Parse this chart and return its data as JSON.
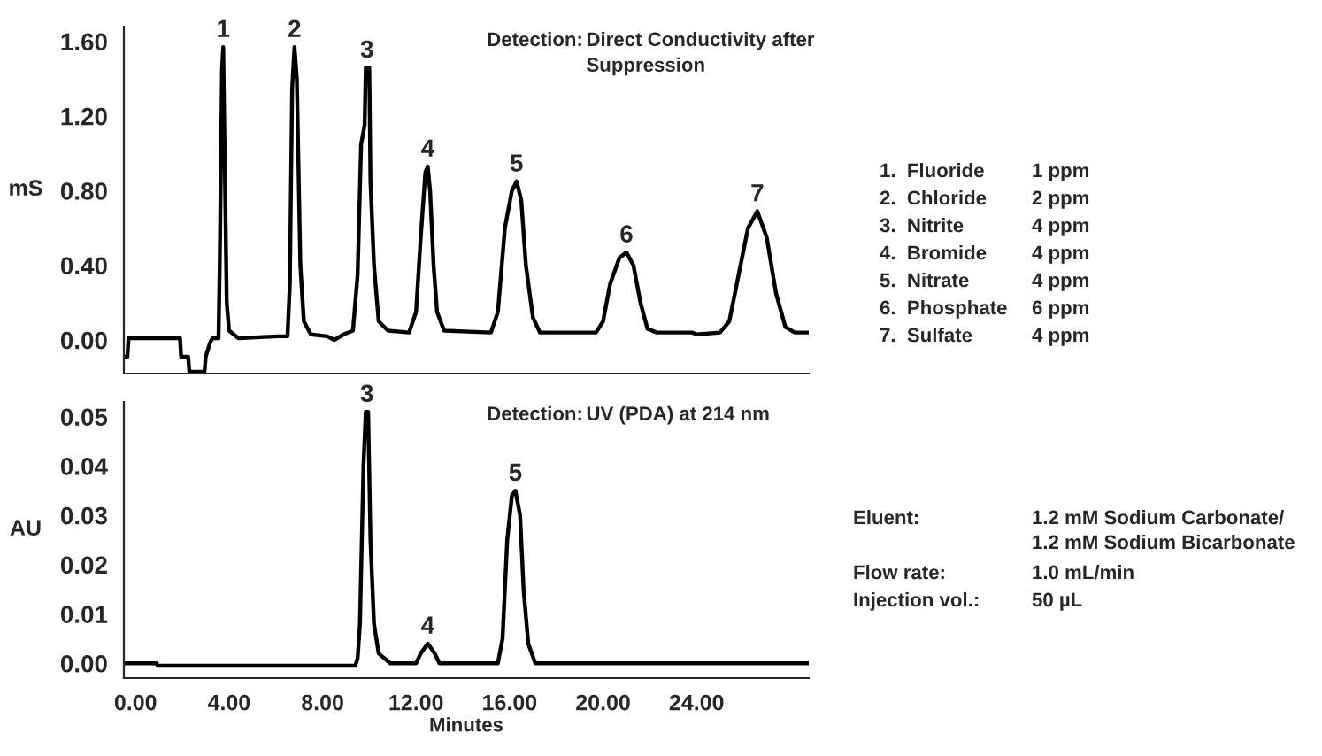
{
  "chart_data": [
    {
      "type": "line",
      "ylabel": "mS",
      "xlim": [
        -0.5,
        28.8
      ],
      "tick_labels": "y",
      "ylim": [
        -0.18,
        1.68
      ],
      "yticks": [
        {
          "value": 0,
          "label": "0.00"
        },
        {
          "value": 0.4,
          "label": "0.40"
        },
        {
          "value": 0.8,
          "label": "0.80"
        },
        {
          "value": 1.2,
          "label": "1.20"
        },
        {
          "value": 1.6,
          "label": "1.60"
        }
      ],
      "grid": false,
      "legend": false,
      "marker": "none",
      "line_style": "solid",
      "series": [
        {
          "color": "#000000",
          "x": [
            -0.5,
            -0.35,
            -0.3,
            1.9,
            1.95,
            2.25,
            2.3,
            2.95,
            3.0,
            3.2,
            3.3,
            3.55,
            3.6,
            3.7,
            3.75,
            3.8,
            3.9,
            4.0,
            4.4,
            6.1,
            6.5,
            6.6,
            6.7,
            6.8,
            6.9,
            7.05,
            7.2,
            7.5,
            8.2,
            8.5,
            8.9,
            9.3,
            9.5,
            9.65,
            9.8,
            9.85,
            10.0,
            10.05,
            10.2,
            10.4,
            10.8,
            11.7,
            12.0,
            12.2,
            12.4,
            12.5,
            12.6,
            12.75,
            12.9,
            13.2,
            15.2,
            15.5,
            15.8,
            16.1,
            16.3,
            16.5,
            16.7,
            17.0,
            17.3,
            19.7,
            20.0,
            20.3,
            20.7,
            21.0,
            21.3,
            21.6,
            21.9,
            22.3,
            23.8,
            24.0,
            25.0,
            25.4,
            25.8,
            26.2,
            26.6,
            27.0,
            27.4,
            27.8,
            28.2,
            28.8
          ],
          "values": [
            -0.09,
            -0.09,
            0.01,
            0.01,
            -0.09,
            -0.09,
            -0.17,
            -0.17,
            -0.09,
            -0.01,
            0.01,
            0.01,
            0.4,
            1.45,
            1.57,
            1.1,
            0.2,
            0.05,
            0.01,
            0.02,
            0.02,
            0.3,
            1.35,
            1.57,
            1.4,
            0.4,
            0.1,
            0.03,
            0.02,
            0.0,
            0.03,
            0.05,
            0.35,
            1.05,
            1.15,
            1.46,
            1.46,
            0.85,
            0.4,
            0.1,
            0.05,
            0.04,
            0.15,
            0.55,
            0.9,
            0.93,
            0.8,
            0.4,
            0.15,
            0.05,
            0.04,
            0.15,
            0.6,
            0.8,
            0.85,
            0.75,
            0.4,
            0.12,
            0.04,
            0.04,
            0.1,
            0.3,
            0.44,
            0.47,
            0.4,
            0.2,
            0.06,
            0.04,
            0.04,
            0.03,
            0.04,
            0.1,
            0.35,
            0.6,
            0.69,
            0.55,
            0.25,
            0.07,
            0.04,
            0.04
          ]
        }
      ],
      "annotations": [
        {
          "text": "1",
          "x": 3.75,
          "y": 1.57
        },
        {
          "text": "2",
          "x": 6.8,
          "y": 1.57
        },
        {
          "text": "3",
          "x": 9.9,
          "y": 1.46
        },
        {
          "text": "4",
          "x": 12.5,
          "y": 0.93
        },
        {
          "text": "5",
          "x": 16.3,
          "y": 0.85
        },
        {
          "text": "6",
          "x": 21.0,
          "y": 0.47
        },
        {
          "text": "7",
          "x": 26.6,
          "y": 0.69
        },
        "Detection:",
        "Direct Conductivity after\nSuppression",
        "1.  Fluoride",
        "1 ppm",
        "2.  Chloride",
        "2 ppm",
        "3.  Nitrite",
        "4 ppm",
        "4.  Bromide",
        "4 ppm",
        "5.  Nitrate",
        "4 ppm",
        "6.  Phosphate",
        "6 ppm",
        "7.  Sulfate",
        "4 ppm"
      ]
    },
    {
      "type": "line",
      "ylabel": "AU",
      "xlabel": "Minutes",
      "xlim": [
        -0.5,
        28.8
      ],
      "xticks": [
        {
          "value": 0,
          "label": "0.00"
        },
        {
          "value": 4,
          "label": "4.00"
        },
        {
          "value": 8,
          "label": "8.00"
        },
        {
          "value": 12,
          "label": "12.00"
        },
        {
          "value": 16,
          "label": "16.00"
        },
        {
          "value": 20,
          "label": "20.00"
        },
        {
          "value": 24,
          "label": "24.00"
        }
      ],
      "ylim": [
        -0.003,
        0.053
      ],
      "yticks": [
        {
          "value": 0,
          "label": "0.00"
        },
        {
          "value": 0.01,
          "label": "0.01"
        },
        {
          "value": 0.02,
          "label": "0.02"
        },
        {
          "value": 0.03,
          "label": "0.03"
        },
        {
          "value": 0.04,
          "label": "0.04"
        },
        {
          "value": 0.05,
          "label": "0.05"
        }
      ],
      "grid": false,
      "legend": false,
      "marker": "none",
      "line_style": "solid",
      "series": [
        {
          "color": "#000000",
          "x": [
            -0.5,
            0.9,
            0.95,
            9.4,
            9.5,
            9.6,
            9.75,
            9.85,
            9.95,
            10.05,
            10.2,
            10.4,
            10.9,
            12.0,
            12.2,
            12.5,
            12.8,
            13.0,
            15.5,
            15.7,
            15.9,
            16.1,
            16.25,
            16.45,
            16.6,
            16.8,
            17.1,
            28.8
          ],
          "values": [
            0.0,
            0.0,
            -0.0005,
            -0.0005,
            0.001,
            0.008,
            0.04,
            0.051,
            0.051,
            0.025,
            0.008,
            0.002,
            0.0,
            0.0,
            0.002,
            0.004,
            0.002,
            0.0,
            0.0,
            0.005,
            0.025,
            0.034,
            0.035,
            0.03,
            0.015,
            0.004,
            0.0,
            0.0
          ]
        }
      ],
      "annotations": [
        {
          "text": "3",
          "x": 9.9,
          "y": 0.051
        },
        {
          "text": "4",
          "x": 12.5,
          "y": 0.004
        },
        {
          "text": "5",
          "x": 16.25,
          "y": 0.035
        },
        "Detection:",
        "UV (PDA) at 214 nm",
        "Eluent:",
        "1.2 mM Sodium Carbonate/\n1.2 mM Sodium Bicarbonate",
        "Flow rate:",
        "1.0 mL/min",
        "Injection vol.:",
        "50 µL"
      ]
    }
  ]
}
